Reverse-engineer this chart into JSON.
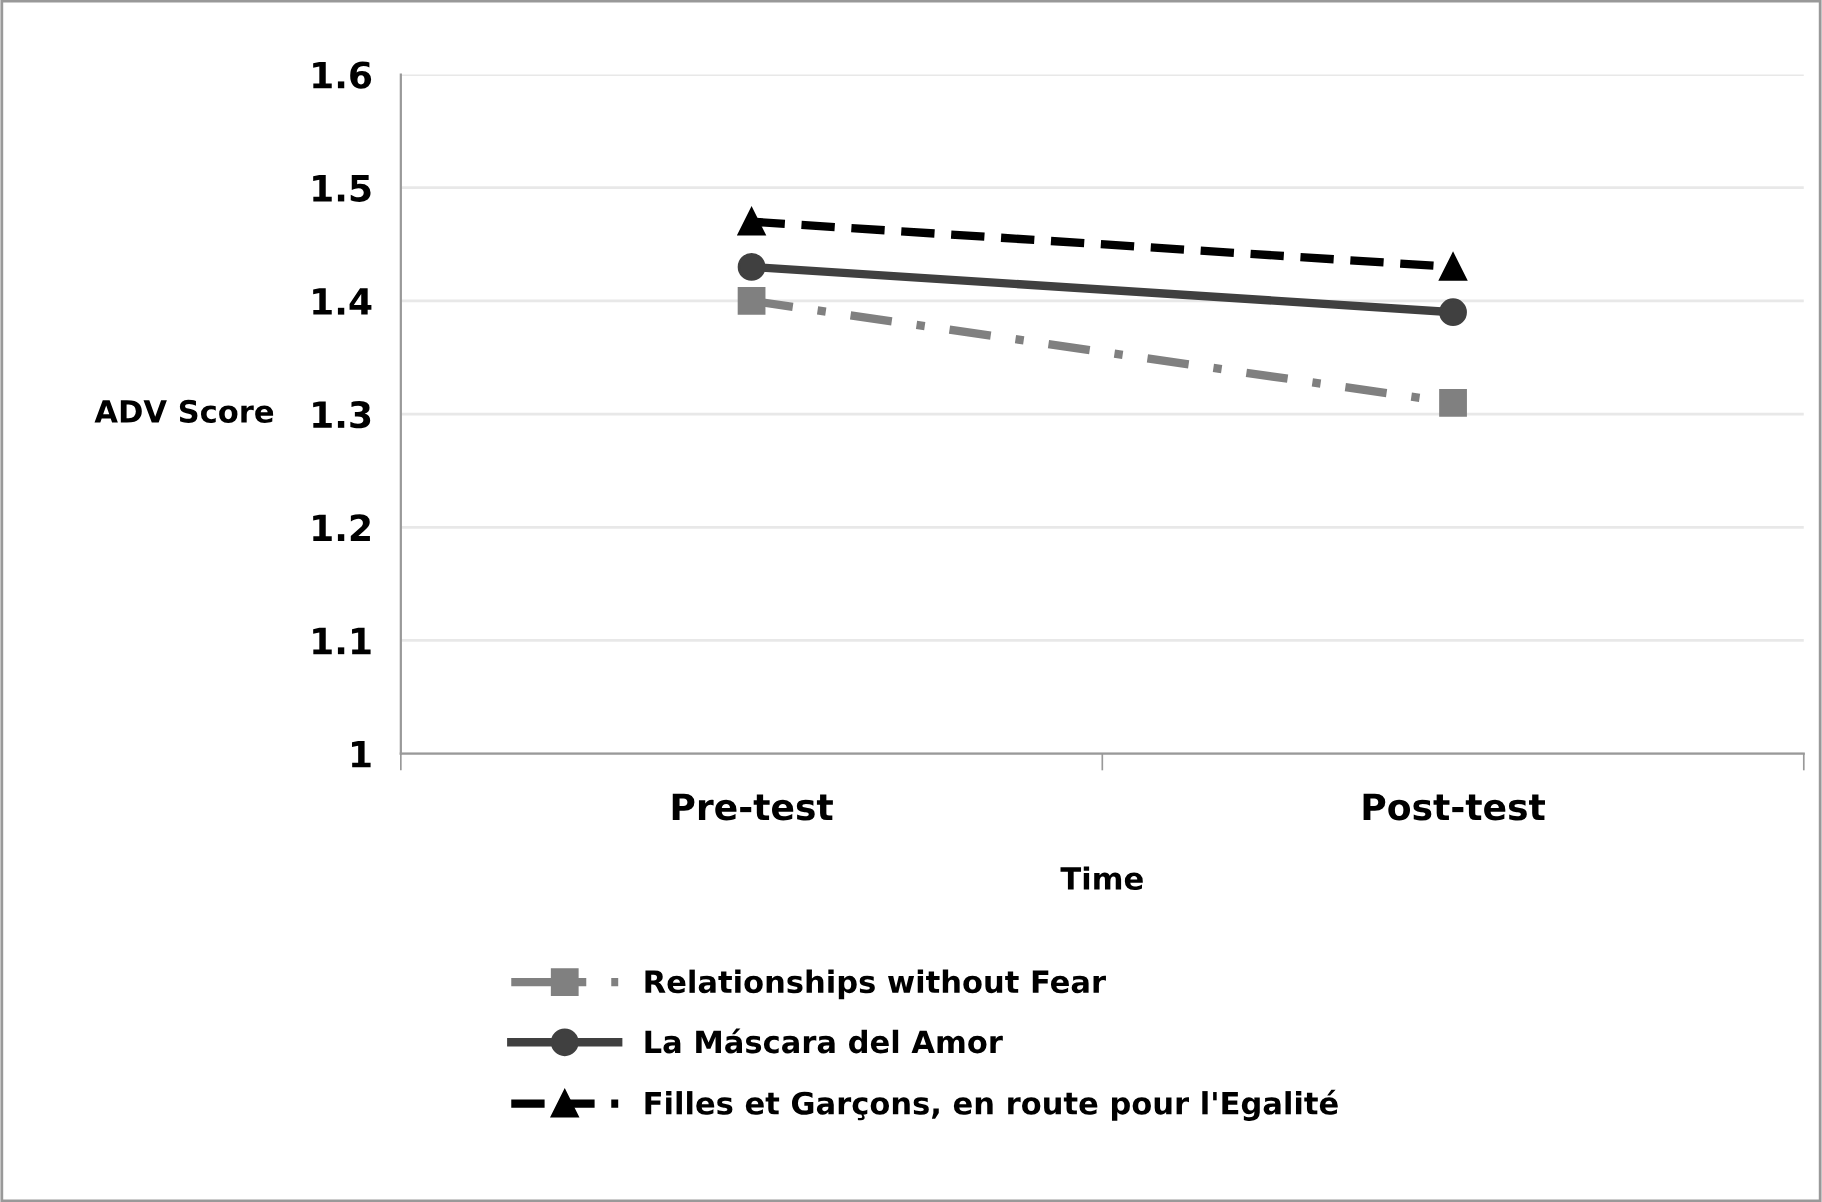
{
  "chart_data": {
    "type": "line",
    "xlabel": "Time",
    "ylabel": "ADV Score",
    "categories": [
      "Pre-test",
      "Post-test"
    ],
    "ylim": [
      1,
      1.6
    ],
    "yticks": [
      1,
      1.1,
      1.2,
      1.3,
      1.4,
      1.5,
      1.6
    ],
    "grid": "y",
    "legend": "bottom",
    "series": [
      {
        "name": "Relationships without Fear",
        "color": "#808080",
        "values": [
          1.4,
          1.31
        ],
        "marker": "square",
        "line_style": "dashdot"
      },
      {
        "name": "La Máscara del Amor",
        "color": "#404040",
        "values": [
          1.43,
          1.39
        ],
        "marker": "circle",
        "line_style": "solid"
      },
      {
        "name": "Filles et Garçons, en route pour l'Egalité",
        "color": "#000000",
        "values": [
          1.47,
          1.43
        ],
        "marker": "triangle",
        "line_style": "dashed"
      }
    ]
  }
}
